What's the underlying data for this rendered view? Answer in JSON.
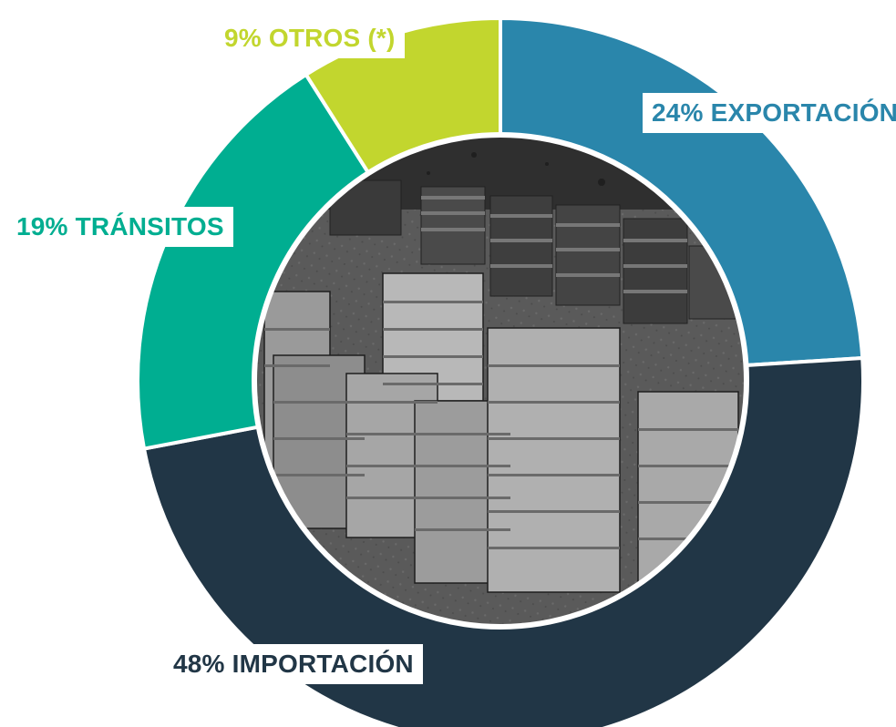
{
  "chart_data": {
    "type": "pie",
    "variant": "donut",
    "center": "grayscale photo of stacked shipping containers",
    "categories": [
      "EXPORTACIÓN",
      "IMPORTACIÓN",
      "TRÁNSITOS",
      "OTROS (*)"
    ],
    "values": [
      24,
      48,
      19,
      9
    ],
    "labels": [
      "24% EXPORTACIÓN",
      "48% IMPORTACIÓN",
      "19% TRÁNSITOS",
      "9% OTROS (*)"
    ],
    "colors": [
      "#2a86ab",
      "#213646",
      "#00ae91",
      "#c2d62e"
    ],
    "start_angle_deg": 0,
    "direction": "clockwise"
  }
}
